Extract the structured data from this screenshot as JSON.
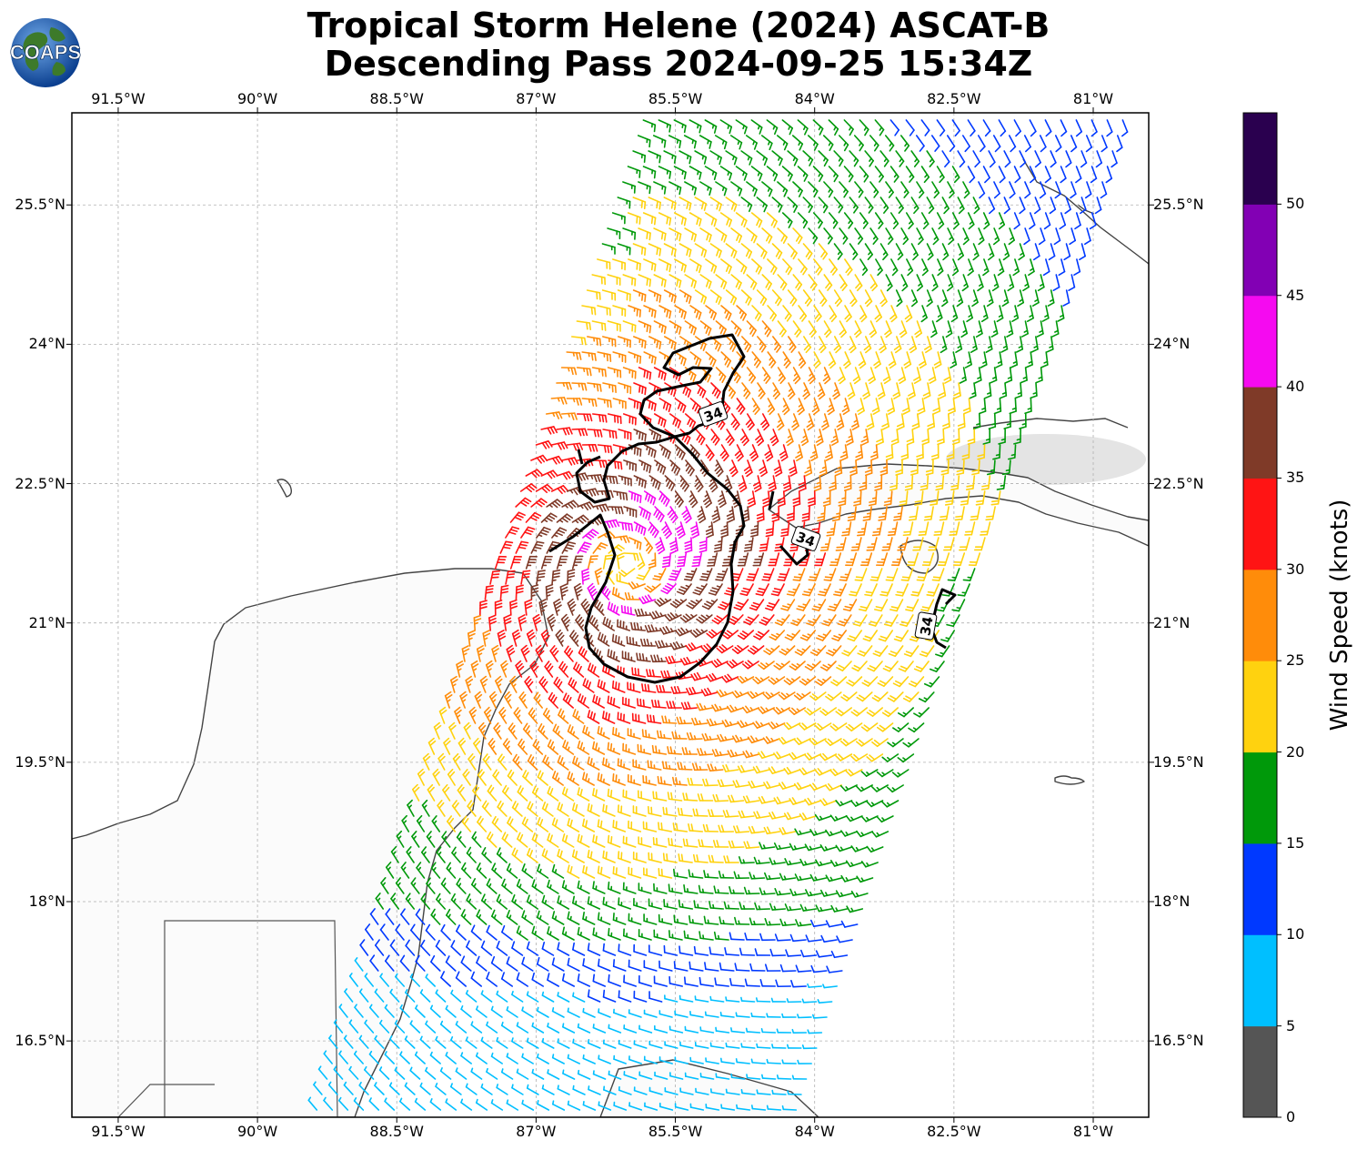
{
  "title": {
    "line1": "Tropical Storm Helene (2024) ASCAT-B",
    "line2": "Descending Pass 2024-09-25 15:34Z"
  },
  "logo": {
    "text": "COAPS",
    "icon": "globe-icon"
  },
  "map": {
    "lon_ticks": [
      "91.5°W",
      "90°W",
      "88.5°W",
      "87°W",
      "85.5°W",
      "84°W",
      "82.5°W",
      "81°W"
    ],
    "lat_ticks": [
      "25.5°N",
      "24°N",
      "22.5°N",
      "21°N",
      "19.5°N",
      "18°N",
      "16.5°N"
    ],
    "lon_range": [
      "92°W",
      "80.4°W"
    ],
    "lat_range": [
      "15.7°N",
      "26.5°N"
    ],
    "contour_label": "34",
    "gridlines": true
  },
  "colorbar": {
    "label": "Wind Speed (knots)",
    "ticks": [
      "0",
      "5",
      "10",
      "15",
      "20",
      "25",
      "30",
      "35",
      "40",
      "45",
      "50"
    ],
    "colors": [
      "#555555",
      "#00bfff",
      "#0039ff",
      "#00990a",
      "#ffd20f",
      "#ff8c0a",
      "#ff1414",
      "#7f3a28",
      "#f50af0",
      "#8200b4",
      "#2a004f"
    ]
  }
}
